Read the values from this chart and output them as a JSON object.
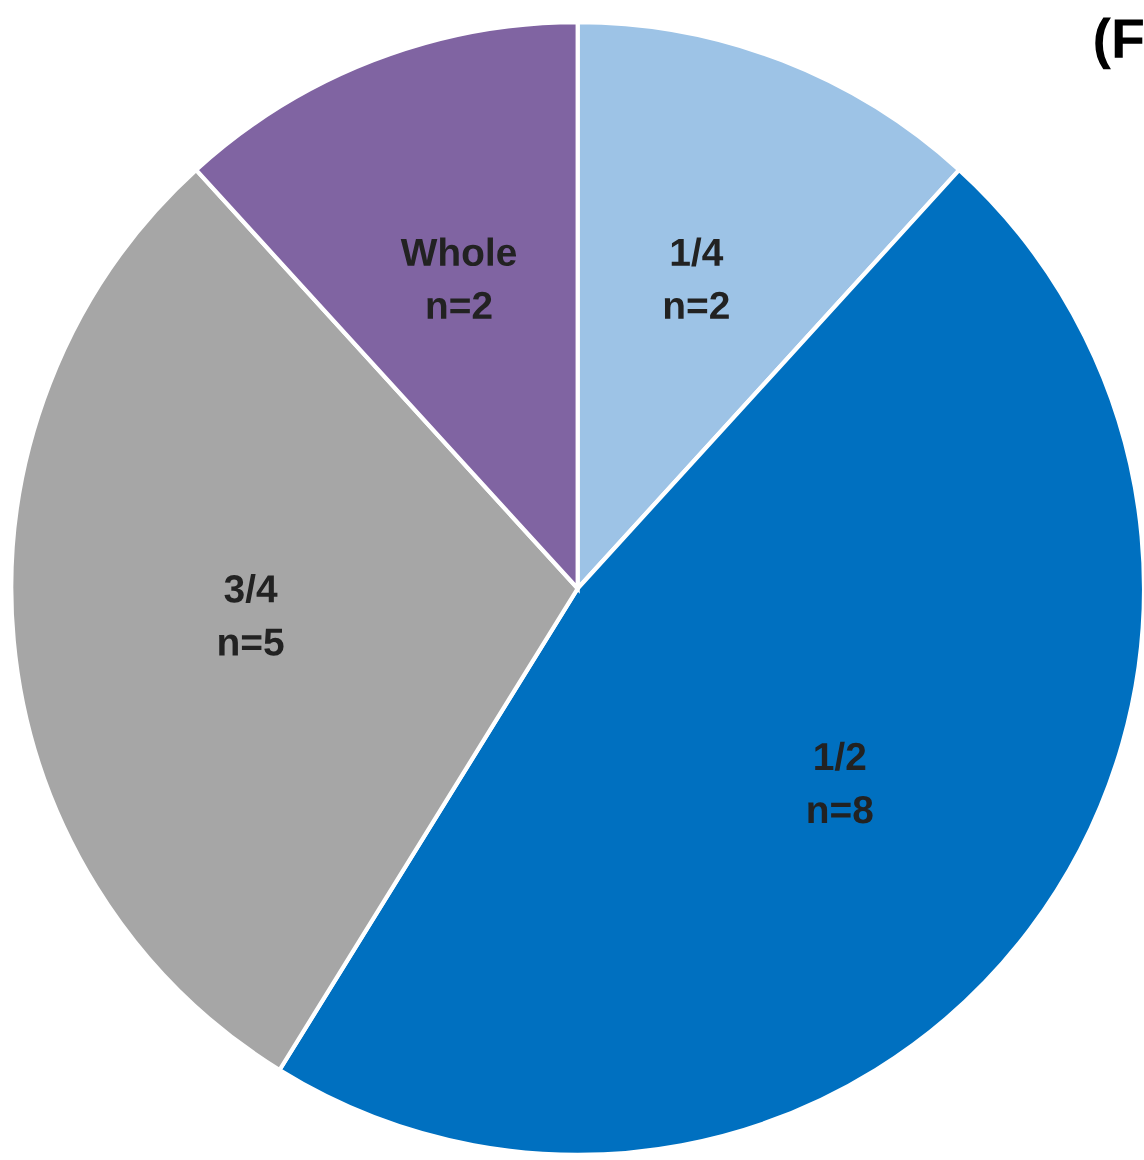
{
  "chart_data": {
    "type": "pie",
    "title": "(F",
    "categories": [
      "1/4",
      "1/2",
      "3/4",
      "Whole"
    ],
    "values": [
      2,
      8,
      5,
      2
    ],
    "value_labels": [
      "n=2",
      "n=8",
      "n=5",
      "n=2"
    ],
    "colors": [
      "#9dc3e6",
      "#0070c0",
      "#a6a6a6",
      "#8064a2"
    ],
    "legend": false
  }
}
